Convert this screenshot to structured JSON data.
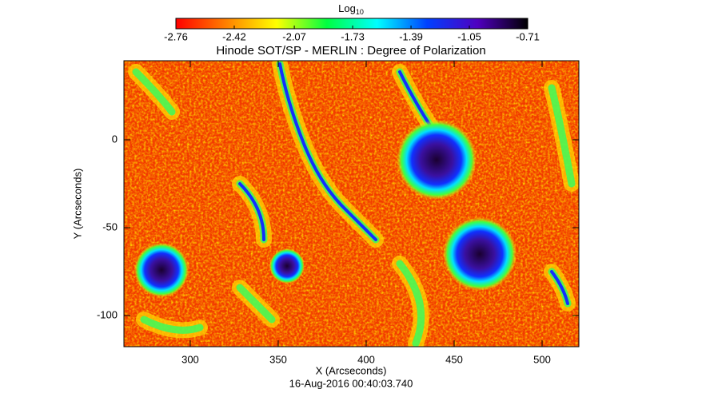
{
  "chart_data": {
    "type": "image",
    "title": "Hinode SOT/SP - MERLIN : Degree of Polarization",
    "subtitle": "16-Aug-2016 00:40:03.740",
    "xlabel": "X (Arcseconds)",
    "ylabel": "Y (Arcseconds)",
    "xlim": [
      262.3,
      520.9
    ],
    "ylim": [
      -117.7,
      45
    ],
    "xticks": [
      300,
      350,
      400,
      450,
      500
    ],
    "yticks": [
      -100,
      -50,
      0
    ],
    "colorbar_label": "Log",
    "colorbar_label_sub": "10",
    "colorbar_lim": [
      -2.76,
      -0.71
    ],
    "colorbar_ticks": [
      -2.76,
      -2.42,
      -2.07,
      -1.73,
      -1.39,
      -1.05,
      -0.71
    ],
    "colormap": [
      "#ff0000",
      "#ff8000",
      "#ffff00",
      "#00ff40",
      "#00ffff",
      "#0040ff",
      "#5000c0",
      "#000000"
    ]
  }
}
